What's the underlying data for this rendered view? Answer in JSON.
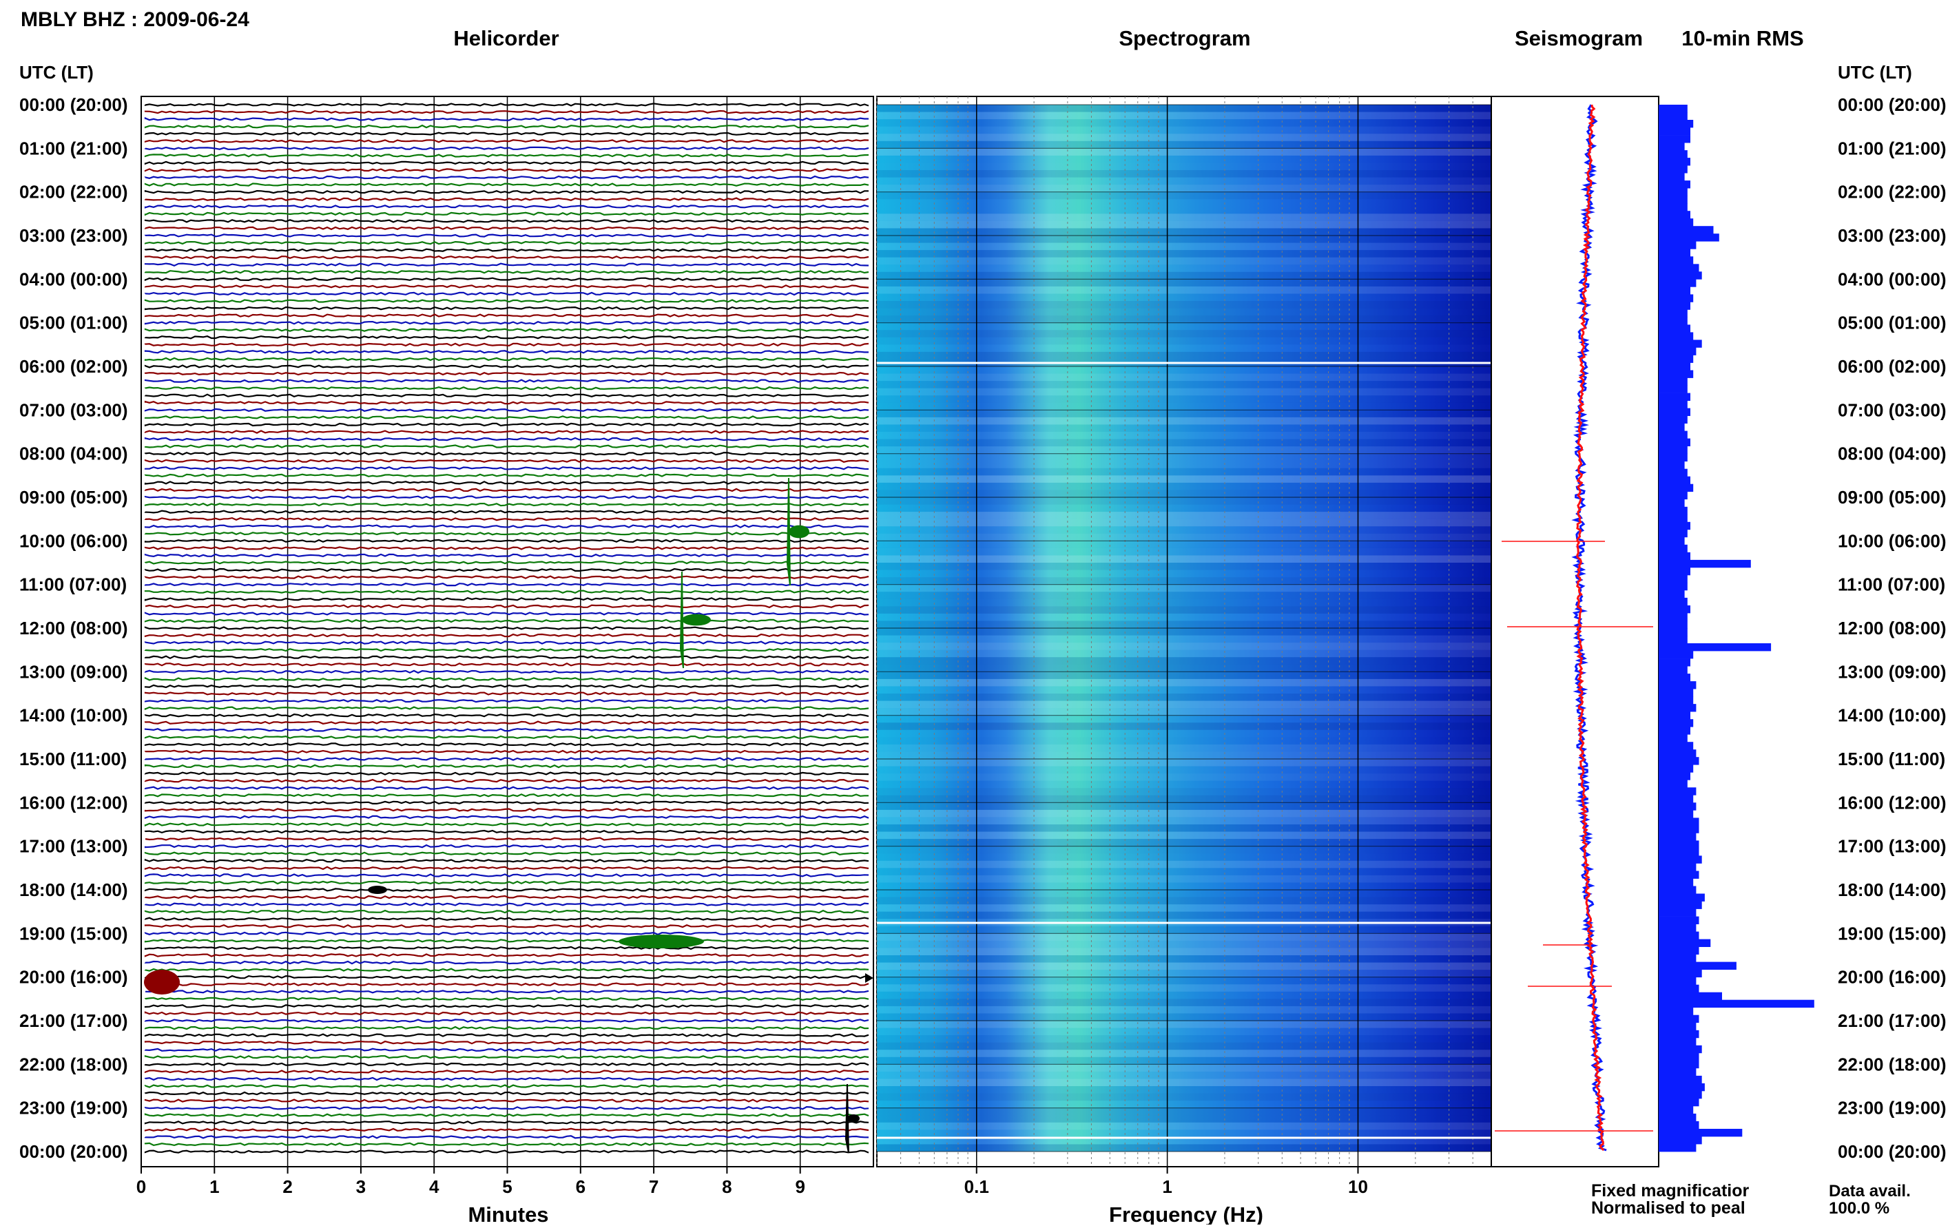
{
  "station_title": "MBLY BHZ : 2009-06-24",
  "panel_titles": {
    "helicorder": "Helicorder",
    "spectrogram": "Spectrogram",
    "seismogram": "Seismogram",
    "rms": "10-min RMS"
  },
  "time_axis": {
    "header_left": "UTC (LT)",
    "header_right": "UTC (LT)",
    "labels": [
      "00:00 (20:00)",
      "01:00 (21:00)",
      "02:00 (22:00)",
      "03:00 (23:00)",
      "04:00 (00:00)",
      "05:00 (01:00)",
      "06:00 (02:00)",
      "07:00 (03:00)",
      "08:00 (04:00)",
      "09:00 (05:00)",
      "10:00 (06:00)",
      "11:00 (07:00)",
      "12:00 (08:00)",
      "13:00 (09:00)",
      "14:00 (10:00)",
      "15:00 (11:00)",
      "16:00 (12:00)",
      "17:00 (13:00)",
      "18:00 (14:00)",
      "19:00 (15:00)",
      "20:00 (16:00)",
      "21:00 (17:00)",
      "22:00 (18:00)",
      "23:00 (19:00)",
      "00:00 (20:00)"
    ]
  },
  "x_axes": {
    "minutes_label": "Minutes",
    "minutes_ticks": [
      "0",
      "1",
      "2",
      "3",
      "4",
      "5",
      "6",
      "7",
      "8",
      "9"
    ],
    "frequency_label": "Frequency (Hz)",
    "frequency_ticks": [
      "0.1",
      "1",
      "10"
    ]
  },
  "legend": {
    "fixed": "Fixed magnificatior",
    "normalised": "Normalised to peal",
    "fixed_color": "#0a1cff",
    "normalised_color": "#ff1010"
  },
  "data_availability": {
    "label": "Data avail.",
    "value": "100.0 %"
  },
  "colors": {
    "trace_black": "#000000",
    "trace_blue": "#0a10b8",
    "trace_red": "#8b0000",
    "trace_green": "#0a7a0a",
    "rms_bar": "#0a1cff"
  },
  "chart_data": {
    "type": "bar",
    "title": "10-min RMS",
    "x_unit": "hours UTC",
    "interval_minutes": 10,
    "values": [
      1,
      1,
      1.2,
      1.1,
      1.1,
      0.9,
      1,
      1.1,
      1,
      0.9,
      1.1,
      1,
      1,
      1,
      1.1,
      1.2,
      1.9,
      2.1,
      1.3,
      1.1,
      1.2,
      1.4,
      1.5,
      1.3,
      1.1,
      1.2,
      1.1,
      1,
      1,
      1.1,
      1.2,
      1.5,
      1.3,
      1.2,
      1.1,
      1.2,
      1,
      1,
      1.1,
      1,
      1.1,
      1,
      0.9,
      1,
      1.1,
      1,
      1,
      0.9,
      1,
      1.1,
      1.2,
      1,
      0.9,
      1,
      1,
      1.1,
      1,
      0.9,
      1,
      1.1,
      3.2,
      1.1,
      1,
      1,
      0.9,
      1,
      1.1,
      1,
      1,
      1,
      1,
      3.9,
      1.2,
      1.1,
      1,
      1.1,
      1.3,
      1.2,
      1.2,
      1.3,
      1.1,
      1.2,
      1.1,
      1,
      1.2,
      1.3,
      1.4,
      1.2,
      1.1,
      1,
      1.3,
      1.2,
      1.3,
      1.2,
      1.4,
      1.4,
      1.3,
      1.4,
      1.4,
      1.5,
      1.3,
      1.4,
      1.2,
      1.3,
      1.6,
      1.5,
      1.3,
      1.4,
      1.3,
      1.4,
      1.8,
      1.4,
      1.3,
      2.7,
      1.5,
      1.3,
      1.4,
      2.2,
      5.4,
      1.2,
      1.4,
      1.3,
      1.4,
      1.3,
      1.5,
      1.4,
      1.4,
      1.3,
      1.5,
      1.6,
      1.5,
      1.4,
      1.2,
      1.3,
      1.4,
      2.9,
      1.5,
      1.3
    ]
  }
}
